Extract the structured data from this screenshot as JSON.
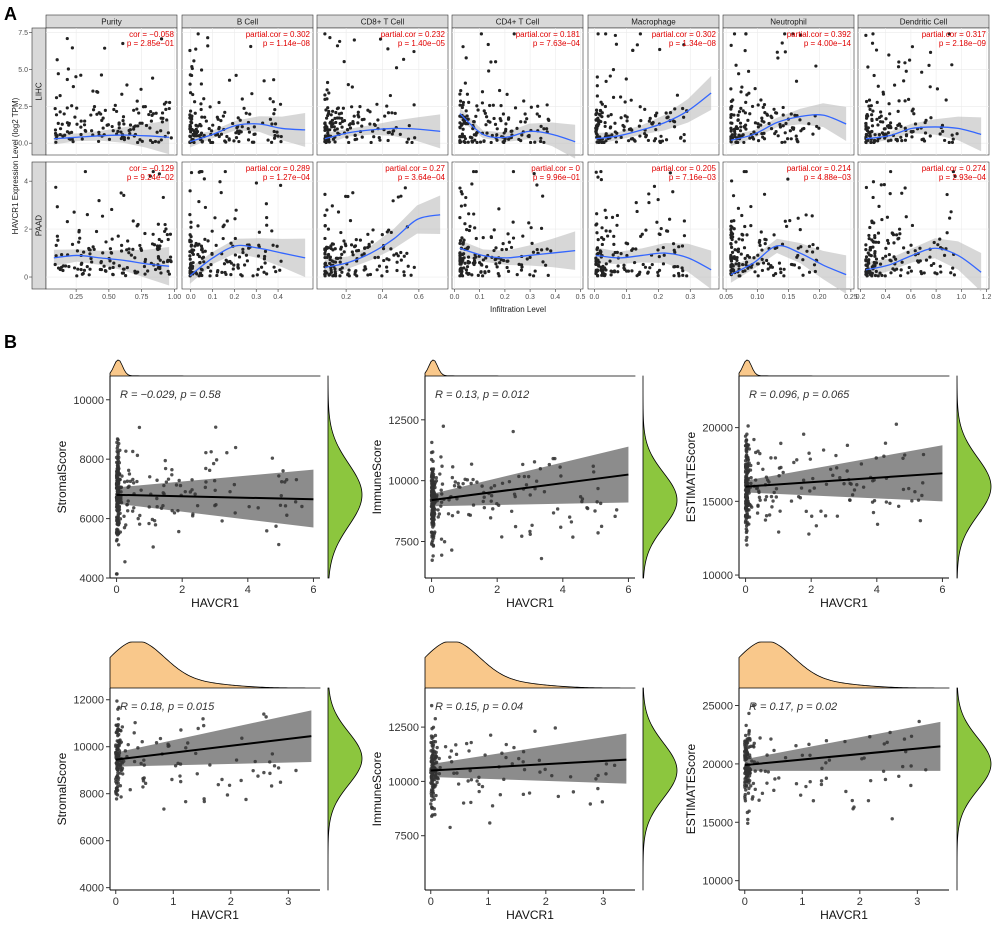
{
  "figure": {
    "panel_a_label": "A",
    "panel_b_label": "B"
  },
  "chart_data": [
    {
      "type": "scatter",
      "panel": "A",
      "title": "",
      "xlabel": "Infiltration Level",
      "ylabel": "HAVCR1 Expression Level (log2 TPM)",
      "rows": [
        "LIHC",
        "PAAD"
      ],
      "row_ylim": [
        [
          -0.8,
          7.8
        ],
        [
          -0.5,
          4.8
        ]
      ],
      "row_yticks": [
        [
          0.0,
          2.5,
          5.0,
          7.5
        ],
        [
          0,
          2,
          4
        ]
      ],
      "row_yticklabels": [
        [
          "0.0",
          "2.5",
          "5.0",
          "7.5"
        ],
        [
          "0",
          "2",
          "4"
        ]
      ],
      "columns": [
        {
          "name": "Purity",
          "xlim": [
            0.02,
            1.02
          ],
          "xticks": [
            0.25,
            0.5,
            0.75,
            1.0
          ],
          "xticklabels": [
            "0.25",
            "0.50",
            "0.75",
            "1.00"
          ],
          "lihc_fit": [
            0.3,
            0.4,
            0.5,
            0.55,
            0.5,
            0.4
          ],
          "paad_fit": [
            0.8,
            0.9,
            0.8,
            0.7,
            0.55,
            0.45
          ]
        },
        {
          "name": "B Cell",
          "xlim": [
            -0.04,
            0.56
          ],
          "xticks": [
            0.0,
            0.1,
            0.2,
            0.3,
            0.4
          ],
          "xticklabels": [
            "0.0",
            "0.1",
            "0.2",
            "0.3",
            "0.4"
          ],
          "lihc_fit": [
            0.1,
            0.6,
            1.2,
            1.3,
            1.0,
            0.9
          ],
          "paad_fit": [
            0.05,
            0.8,
            1.3,
            1.2,
            1.0,
            0.8
          ]
        },
        {
          "name": "CD8+ T Cell",
          "xlim": [
            0.04,
            0.76
          ],
          "xticks": [
            0.2,
            0.4,
            0.6
          ],
          "xticklabels": [
            "0.2",
            "0.4",
            "0.6"
          ],
          "lihc_fit": [
            0.3,
            0.7,
            0.9,
            1.0,
            0.95,
            0.8
          ],
          "paad_fit": [
            0.4,
            0.6,
            1.0,
            1.6,
            2.4,
            2.6
          ]
        },
        {
          "name": "CD4+ T Cell",
          "xlim": [
            -0.01,
            0.51
          ],
          "xticks": [
            0.0,
            0.1,
            0.2,
            0.3,
            0.4,
            0.5
          ],
          "xticklabels": [
            "0.0",
            "0.1",
            "0.2",
            "0.3",
            "0.4",
            "0.5"
          ],
          "lihc_fit": [
            2.0,
            0.6,
            0.4,
            0.8,
            0.6,
            0.1
          ],
          "paad_fit": [
            1.2,
            0.9,
            0.8,
            0.9,
            1.0,
            1.1
          ]
        },
        {
          "name": "Macrophage",
          "xlim": [
            -0.02,
            0.39
          ],
          "xticks": [
            0.0,
            0.1,
            0.2,
            0.3
          ],
          "xticklabels": [
            "0.0",
            "0.1",
            "0.2",
            "0.3"
          ],
          "lihc_fit": [
            0.3,
            0.5,
            0.9,
            1.4,
            2.2,
            3.4
          ],
          "paad_fit": [
            0.9,
            0.8,
            0.9,
            1.0,
            0.8,
            0.3
          ]
        },
        {
          "name": "Neutrophil",
          "xlim": [
            0.045,
            0.255
          ],
          "xticks": [
            0.05,
            0.1,
            0.15,
            0.2,
            0.25
          ],
          "xticklabels": [
            "0.05",
            "0.10",
            "0.15",
            "0.20",
            "0.25"
          ],
          "lihc_fit": [
            0.2,
            0.6,
            1.4,
            1.8,
            1.9,
            1.3
          ],
          "paad_fit": [
            0.1,
            0.6,
            1.3,
            1.0,
            0.5,
            0.1
          ]
        },
        {
          "name": "Dendritic Cell",
          "xlim": [
            0.18,
            1.22
          ],
          "xticks": [
            0.2,
            0.4,
            0.6,
            0.8,
            1.0,
            1.2
          ],
          "xticklabels": [
            "0.2",
            "0.4",
            "0.6",
            "0.8",
            "1.0",
            "1.2"
          ],
          "lihc_fit": [
            0.3,
            0.5,
            1.0,
            1.1,
            1.0,
            0.6
          ],
          "paad_fit": [
            0.3,
            0.5,
            0.9,
            1.2,
            0.9,
            0.2
          ]
        }
      ],
      "annotations": [
        {
          "row": "LIHC",
          "column": "Purity",
          "cor": "cor = −0.058",
          "p": "p = 2.85e−01"
        },
        {
          "row": "LIHC",
          "column": "B Cell",
          "cor": "partial.cor = 0.302",
          "p": "p = 1.14e−08"
        },
        {
          "row": "LIHC",
          "column": "CD8+ T Cell",
          "cor": "partial.cor = 0.232",
          "p": "p = 1.40e−05"
        },
        {
          "row": "LIHC",
          "column": "CD4+ T Cell",
          "cor": "partial.cor = 0.181",
          "p": "p = 7.63e−04"
        },
        {
          "row": "LIHC",
          "column": "Macrophage",
          "cor": "partial.cor = 0.302",
          "p": "p = 1.34e−08"
        },
        {
          "row": "LIHC",
          "column": "Neutrophil",
          "cor": "partial.cor = 0.392",
          "p": "p = 4.00e−14"
        },
        {
          "row": "LIHC",
          "column": "Dendritic Cell",
          "cor": "partial.cor = 0.317",
          "p": "p = 2.18e−09"
        },
        {
          "row": "PAAD",
          "column": "Purity",
          "cor": "cor = −0.129",
          "p": "p = 9.24e−02"
        },
        {
          "row": "PAAD",
          "column": "B Cell",
          "cor": "partial.cor = 0.289",
          "p": "p = 1.27e−04"
        },
        {
          "row": "PAAD",
          "column": "CD8+ T Cell",
          "cor": "partial.cor = 0.27",
          "p": "p = 3.64e−04"
        },
        {
          "row": "PAAD",
          "column": "CD4+ T Cell",
          "cor": "partial.cor = 0",
          "p": "p = 9.96e−01"
        },
        {
          "row": "PAAD",
          "column": "Macrophage",
          "cor": "partial.cor = 0.205",
          "p": "p = 7.16e−03"
        },
        {
          "row": "PAAD",
          "column": "Neutrophil",
          "cor": "partial.cor = 0.214",
          "p": "p = 4.88e−03"
        },
        {
          "row": "PAAD",
          "column": "Dendritic Cell",
          "cor": "partial.cor = 0.274",
          "p": "p = 2.93e−04"
        }
      ]
    },
    {
      "type": "scatter",
      "panel": "B",
      "title": "",
      "xlabel": "HAVCR1",
      "plots": [
        {
          "ylabel": "StromalScore",
          "xlim": [
            -0.2,
            6.2
          ],
          "ylim": [
            4000,
            10800
          ],
          "xticks": [
            0,
            2,
            4,
            6
          ],
          "yticks": [
            4000,
            6000,
            8000,
            10000
          ],
          "r_label": "R = −0.029, p = 0.58",
          "fit": [
            6800,
            6650
          ],
          "band": [
            [
              6500,
              7050
            ],
            [
              5700,
              7650
            ]
          ],
          "center": 6800,
          "spread": 1500,
          "n": 300,
          "xmax_points": 6
        },
        {
          "ylabel": "ImmuneScore",
          "xlim": [
            -0.2,
            6.2
          ],
          "ylim": [
            6000,
            14300
          ],
          "xticks": [
            0,
            2,
            4,
            6
          ],
          "yticks": [
            7500,
            10000,
            12500
          ],
          "r_label": "R = 0.13, p = 0.012",
          "fit": [
            9200,
            10250
          ],
          "band": [
            [
              8950,
              9450
            ],
            [
              9100,
              11400
            ]
          ],
          "center": 9200,
          "spread": 1600,
          "n": 300,
          "xmax_points": 6
        },
        {
          "ylabel": "ESTIMATEScore",
          "xlim": [
            -0.2,
            6.2
          ],
          "ylim": [
            9800,
            23500
          ],
          "xticks": [
            0,
            2,
            4,
            6
          ],
          "yticks": [
            10000,
            15000,
            20000
          ],
          "r_label": "R = 0.096, p = 0.065",
          "fit": [
            16000,
            16900
          ],
          "band": [
            [
              15600,
              16400
            ],
            [
              15000,
              18800
            ]
          ],
          "center": 16000,
          "spread": 2800,
          "n": 300,
          "xmax_points": 6
        },
        {
          "ylabel": "StromalScore",
          "xlim": [
            -0.1,
            3.55
          ],
          "ylim": [
            3900,
            12500
          ],
          "xticks": [
            0,
            1,
            2,
            3
          ],
          "yticks": [
            4000,
            6000,
            8000,
            10000,
            12000
          ],
          "r_label": "R = 0.18, p = 0.015",
          "fit": [
            9450,
            10450
          ],
          "band": [
            [
              9150,
              9750
            ],
            [
              9350,
              11550
            ]
          ],
          "center": 9500,
          "spread": 1600,
          "n": 180,
          "xmax_points": 3.4
        },
        {
          "ylabel": "ImmuneScore",
          "xlim": [
            -0.1,
            3.55
          ],
          "ylim": [
            5000,
            14300
          ],
          "xticks": [
            0,
            1,
            2,
            3
          ],
          "yticks": [
            7500,
            10000,
            12500
          ],
          "r_label": "R = 0.15, p = 0.04",
          "fit": [
            10500,
            11000
          ],
          "band": [
            [
              10200,
              10800
            ],
            [
              9900,
              12200
            ]
          ],
          "center": 10500,
          "spread": 1800,
          "n": 180,
          "xmax_points": 3.4
        },
        {
          "ylabel": "ESTIMATEScore",
          "xlim": [
            -0.1,
            3.55
          ],
          "ylim": [
            9200,
            26500
          ],
          "xticks": [
            0,
            1,
            2,
            3
          ],
          "yticks": [
            10000,
            15000,
            20000,
            25000
          ],
          "r_label": "R = 0.17, p = 0.02",
          "fit": [
            19900,
            21500
          ],
          "band": [
            [
              19400,
              20400
            ],
            [
              19400,
              23600
            ]
          ],
          "center": 20000,
          "spread": 3200,
          "n": 180,
          "xmax_points": 3.4
        }
      ]
    }
  ]
}
